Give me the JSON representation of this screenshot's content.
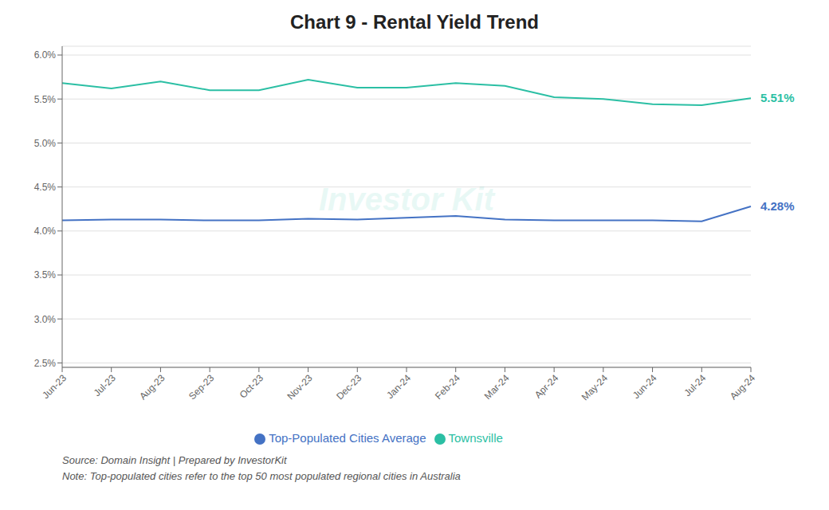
{
  "chart_data": {
    "type": "line",
    "title": "Chart 9 - Rental Yield Trend",
    "categories": [
      "Jun-23",
      "Jul-23",
      "Aug-23",
      "Sep-23",
      "Oct-23",
      "Nov-23",
      "Dec-23",
      "Jan-24",
      "Feb-24",
      "Mar-24",
      "Apr-24",
      "May-24",
      "Jun-24",
      "Jul-24",
      "Aug-24"
    ],
    "series": [
      {
        "name": "Townsville",
        "color": "#2bbfa4",
        "values": [
          5.68,
          5.62,
          5.7,
          5.6,
          5.6,
          5.72,
          5.63,
          5.63,
          5.68,
          5.65,
          5.52,
          5.5,
          5.44,
          5.43,
          5.51
        ]
      },
      {
        "name": "Top-Populated Cities Average",
        "color": "#4472c4",
        "values": [
          4.12,
          4.13,
          4.13,
          4.12,
          4.12,
          4.14,
          4.13,
          4.15,
          4.17,
          4.13,
          4.12,
          4.12,
          4.12,
          4.11,
          4.28
        ]
      }
    ],
    "ylim": [
      2.45,
      6.1
    ],
    "yticks": [
      {
        "value": 2.5,
        "label": "2.5%"
      },
      {
        "value": 3.0,
        "label": "3.0%"
      },
      {
        "value": 3.5,
        "label": "3.5%"
      },
      {
        "value": 4.0,
        "label": "4.0%"
      },
      {
        "value": 4.5,
        "label": "4.5%"
      },
      {
        "value": 5.0,
        "label": "5.0%"
      },
      {
        "value": 5.5,
        "label": "5.5%"
      },
      {
        "value": 6.0,
        "label": "6.0%"
      }
    ],
    "grid": true,
    "legend": "bottom",
    "annotations": [
      {
        "text": "5.51%",
        "x": "Aug-24",
        "y": 5.51,
        "color": "#2bbfa4"
      },
      {
        "text": "4.28%",
        "x": "Aug-24",
        "y": 4.28,
        "color": "#4472c4"
      }
    ],
    "watermark": "Investor Kit",
    "source": "Source: Domain Insight | Prepared by InvestorKit",
    "note": "Note: Top-populated cities refer to the top 50 most populated regional cities in Australia"
  }
}
